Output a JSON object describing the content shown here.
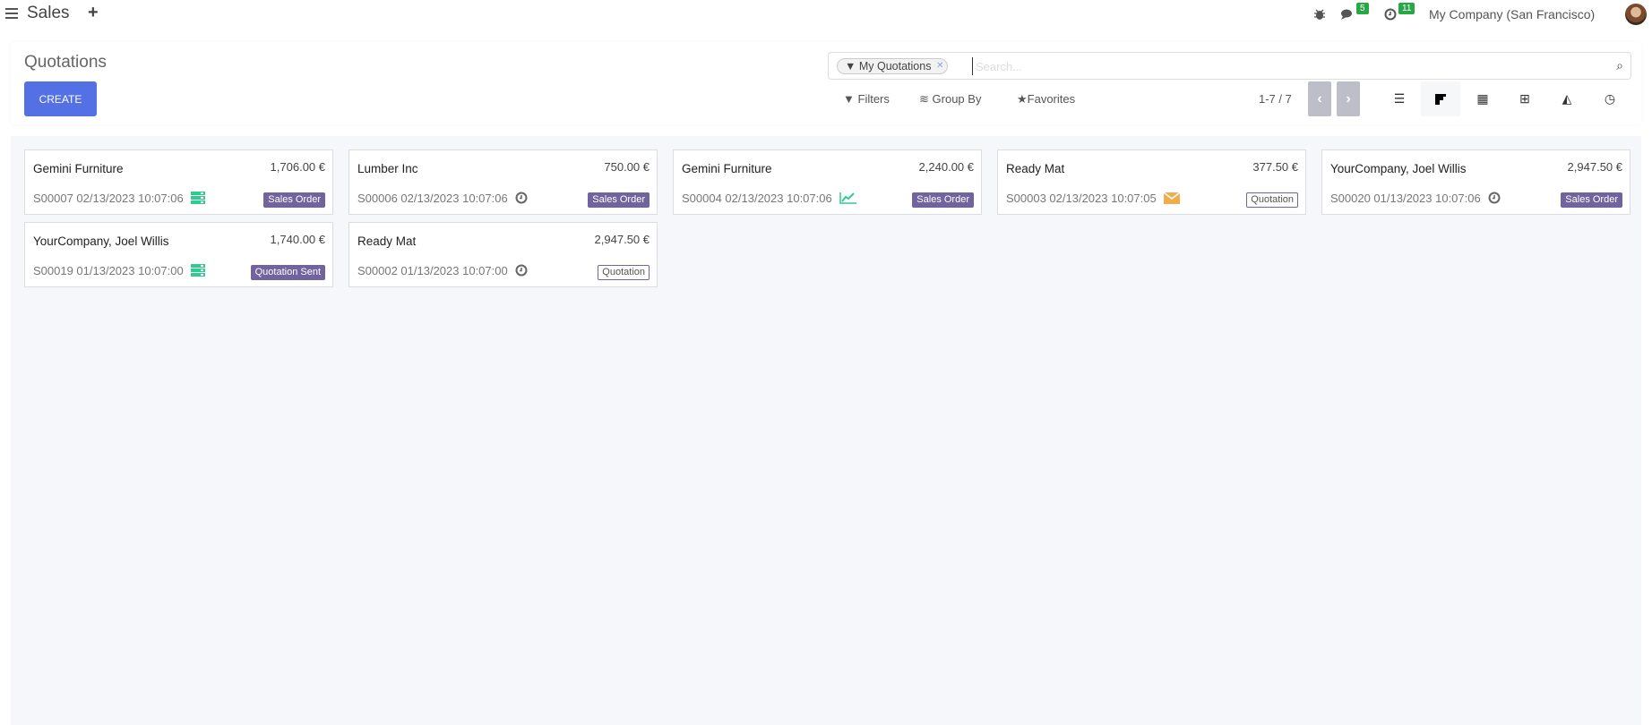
{
  "topnav": {
    "app": "Sales",
    "plus": "+",
    "messages_count": "5",
    "activities_count": "11",
    "company": "My Company (San Francisco)",
    "icons": [
      "menu-icon",
      "plus-icon",
      "bug-icon",
      "chat-icon",
      "clock-icon",
      "avatar"
    ]
  },
  "control": {
    "title": "Quotations",
    "create": "CREATE",
    "facet": "My Quotations",
    "search_placeholder": "Search...",
    "filters": "Filters",
    "group_by": "Group By",
    "favorites": "Favorites",
    "pager": "1-7 / 7",
    "views": [
      "list",
      "kanban",
      "calendar",
      "pivot",
      "graph",
      "activity"
    ],
    "active_view": "kanban"
  },
  "colors": {
    "primary": "#5470e5",
    "badge": "#71639e",
    "activity_green": "#2ecc8f",
    "activity_warning": "#f0ad4e",
    "counter": "#28a745"
  },
  "cards": [
    {
      "name": "Gemini Furniture",
      "amount": "1,706.00 €",
      "ref": "S00007 02/13/2023 10:07:06",
      "activity": "server-icon",
      "status": "Sales Order",
      "style": "fill"
    },
    {
      "name": "Lumber Inc",
      "amount": "750.00 €",
      "ref": "S00006 02/13/2023 10:07:06",
      "activity": "clock-icon",
      "status": "Sales Order",
      "style": "fill"
    },
    {
      "name": "Gemini Furniture",
      "amount": "2,240.00 €",
      "ref": "S00004 02/13/2023 10:07:06",
      "activity": "chart-line-icon",
      "status": "Sales Order",
      "style": "fill"
    },
    {
      "name": "Ready Mat",
      "amount": "377.50 €",
      "ref": "S00003 02/13/2023 10:07:05",
      "activity": "envelope-icon",
      "status": "Quotation",
      "style": "outline"
    },
    {
      "name": "YourCompany, Joel Willis",
      "amount": "2,947.50 €",
      "ref": "S00020 01/13/2023 10:07:06",
      "activity": "clock-icon",
      "status": "Sales Order",
      "style": "fill"
    },
    {
      "name": "YourCompany, Joel Willis",
      "amount": "1,740.00 €",
      "ref": "S00019 01/13/2023 10:07:00",
      "activity": "server-icon",
      "status": "Quotation Sent",
      "style": "fill"
    },
    {
      "name": "Ready Mat",
      "amount": "2,947.50 €",
      "ref": "S00002 01/13/2023 10:07:00",
      "activity": "clock-icon",
      "status": "Quotation",
      "style": "outline"
    }
  ]
}
